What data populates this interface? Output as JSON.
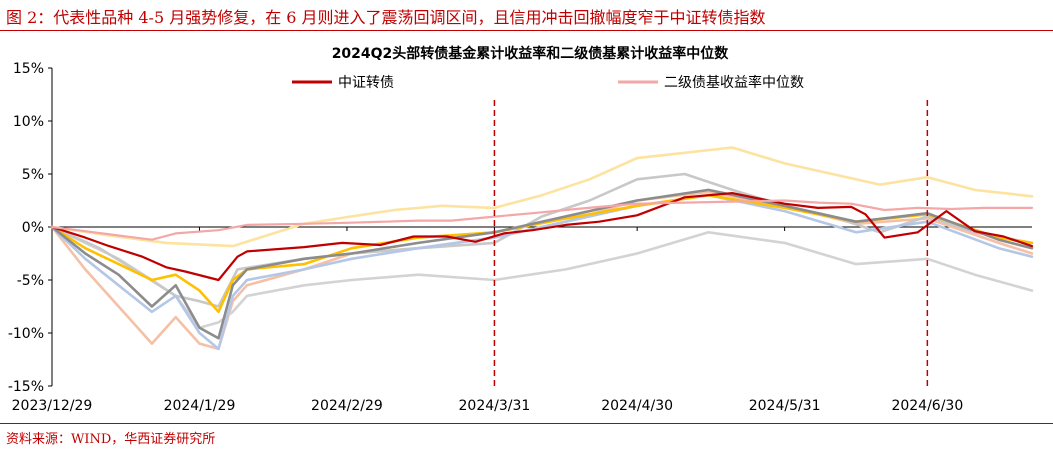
{
  "figure": {
    "title": "图 2：代表性品种 4-5 月强势修复，在 6 月则进入了震荡回调区间，且信用冲击回撤幅度窄于中证转债指数",
    "source": "资料来源：WIND，华西证券研究所"
  },
  "chart_data": {
    "type": "line",
    "title": "2024Q2头部转债基金累计收益率和二级债基累计收益率中位数",
    "xlabel": "",
    "ylabel": "",
    "x_ticks": [
      "2023/12/29",
      "2024/1/29",
      "2024/2/29",
      "2024/3/31",
      "2024/4/30",
      "2024/5/31",
      "2024/6/30"
    ],
    "y_ticks": [
      "15%",
      "10%",
      "5%",
      "0%",
      "-5%",
      "-10%",
      "-15%"
    ],
    "ylim": [
      -15,
      15
    ],
    "x_range": [
      "2023/12/29",
      "2024/7/22"
    ],
    "grid": false,
    "legend_position": "top",
    "vertical_markers": [
      "2024/3/31",
      "2024/6/30"
    ],
    "series": [
      {
        "name": "中证转债",
        "color": "#c00000",
        "x": [
          "2023/12/29",
          "2024/1/5",
          "2024/1/10",
          "2024/1/17",
          "2024/1/22",
          "2024/1/26",
          "2024/2/2",
          "2024/2/6",
          "2024/2/8",
          "2024/2/20",
          "2024/2/28",
          "2024/3/7",
          "2024/3/14",
          "2024/3/21",
          "2024/3/27",
          "2024/4/2",
          "2024/4/8",
          "2024/4/15",
          "2024/4/22",
          "2024/4/30",
          "2024/5/10",
          "2024/5/20",
          "2024/5/31",
          "2024/6/7",
          "2024/6/14",
          "2024/6/17",
          "2024/6/21",
          "2024/6/28",
          "2024/7/4",
          "2024/7/10",
          "2024/7/16",
          "2024/7/22"
        ],
        "values": [
          0,
          -1.0,
          -1.8,
          -2.8,
          -3.8,
          -4.2,
          -5.0,
          -2.8,
          -2.3,
          -1.9,
          -1.5,
          -1.7,
          -0.9,
          -0.9,
          -1.4,
          -0.6,
          -0.3,
          0.2,
          0.5,
          1.1,
          2.8,
          3.2,
          2.2,
          1.8,
          1.9,
          1.2,
          -1.0,
          -0.5,
          1.5,
          -0.4,
          -0.9,
          -1.8
        ]
      },
      {
        "name": "二级债基收益率中位数",
        "color": "#f4a7a7",
        "x": [
          "2023/12/29",
          "2024/1/5",
          "2024/1/12",
          "2024/1/19",
          "2024/1/24",
          "2024/2/2",
          "2024/2/8",
          "2024/2/20",
          "2024/2/29",
          "2024/3/8",
          "2024/3/15",
          "2024/3/22",
          "2024/3/29",
          "2024/4/8",
          "2024/4/15",
          "2024/4/22",
          "2024/4/30",
          "2024/5/10",
          "2024/5/20",
          "2024/5/31",
          "2024/6/7",
          "2024/6/14",
          "2024/6/21",
          "2024/6/28",
          "2024/7/5",
          "2024/7/12",
          "2024/7/22"
        ],
        "values": [
          0,
          -0.4,
          -0.8,
          -1.2,
          -0.6,
          -0.3,
          0.2,
          0.3,
          0.4,
          0.5,
          0.6,
          0.6,
          0.9,
          1.3,
          1.6,
          1.9,
          2.2,
          2.3,
          2.4,
          2.5,
          2.3,
          2.2,
          1.6,
          1.8,
          1.7,
          1.8,
          1.8
        ]
      },
      {
        "name": "",
        "color": "#fde3a0",
        "x": [
          "2023/12/29",
          "2024/1/10",
          "2024/1/22",
          "2024/2/5",
          "2024/2/20",
          "2024/3/1",
          "2024/3/10",
          "2024/3/20",
          "2024/3/31",
          "2024/4/10",
          "2024/4/20",
          "2024/4/30",
          "2024/5/10",
          "2024/5/20",
          "2024/5/31",
          "2024/6/10",
          "2024/6/20",
          "2024/6/30",
          "2024/7/10",
          "2024/7/22"
        ],
        "values": [
          0,
          -0.8,
          -1.5,
          -1.8,
          0.3,
          1.0,
          1.6,
          2.0,
          1.8,
          3.0,
          4.5,
          6.5,
          7.0,
          7.5,
          6.0,
          5.0,
          4.0,
          4.7,
          3.5,
          2.9
        ]
      },
      {
        "name": "",
        "color": "#f5c0a6",
        "x": [
          "2023/12/29",
          "2024/1/5",
          "2024/1/12",
          "2024/1/19",
          "2024/1/24",
          "2024/1/29",
          "2024/2/2",
          "2024/2/5",
          "2024/2/8",
          "2024/2/20",
          "2024/3/1",
          "2024/3/15",
          "2024/3/31",
          "2024/4/15",
          "2024/4/30",
          "2024/5/15",
          "2024/5/31",
          "2024/6/15",
          "2024/6/30",
          "2024/7/15",
          "2024/7/22"
        ],
        "values": [
          0,
          -4.0,
          -7.5,
          -11.0,
          -8.5,
          -11.0,
          -11.5,
          -7.0,
          -5.5,
          -4.0,
          -2.5,
          -2.0,
          -1.0,
          0.5,
          2.5,
          3.3,
          2.0,
          0.3,
          0.8,
          -1.5,
          -2.5
        ]
      },
      {
        "name": "",
        "color": "#d3d3d3",
        "x": [
          "2023/12/29",
          "2024/1/5",
          "2024/1/12",
          "2024/1/19",
          "2024/1/24",
          "2024/1/29",
          "2024/2/2",
          "2024/2/5",
          "2024/2/8",
          "2024/2/20",
          "2024/3/1",
          "2024/3/15",
          "2024/3/31",
          "2024/4/15",
          "2024/4/30",
          "2024/5/15",
          "2024/5/31",
          "2024/6/15",
          "2024/6/30",
          "2024/7/10",
          "2024/7/22"
        ],
        "values": [
          0,
          -1.5,
          -3.0,
          -5.0,
          -6.5,
          -9.5,
          -9.0,
          -8.0,
          -6.5,
          -5.5,
          -5.0,
          -4.5,
          -5.0,
          -4.0,
          -2.5,
          -0.5,
          -1.5,
          -3.5,
          -3.0,
          -4.5,
          -6.0
        ]
      },
      {
        "name": "",
        "color": "#c8c8c8",
        "x": [
          "2023/12/29",
          "2024/1/8",
          "2024/1/17",
          "2024/1/24",
          "2024/1/29",
          "2024/2/2",
          "2024/2/6",
          "2024/2/20",
          "2024/3/1",
          "2024/3/15",
          "2024/3/31",
          "2024/4/10",
          "2024/4/20",
          "2024/4/30",
          "2024/5/10",
          "2024/5/20",
          "2024/5/31",
          "2024/6/10",
          "2024/6/20",
          "2024/6/30",
          "2024/7/10",
          "2024/7/22"
        ],
        "values": [
          0,
          -2.0,
          -4.5,
          -6.5,
          -7.0,
          -7.5,
          -4.0,
          -3.0,
          -2.5,
          -2.0,
          -1.5,
          1.0,
          2.5,
          4.5,
          5.0,
          3.5,
          2.0,
          1.0,
          -0.5,
          1.0,
          -0.5,
          -1.5
        ]
      },
      {
        "name": "",
        "color": "#b4c7e7",
        "x": [
          "2023/12/29",
          "2024/1/5",
          "2024/1/12",
          "2024/1/19",
          "2024/1/24",
          "2024/1/29",
          "2024/2/2",
          "2024/2/5",
          "2024/2/8",
          "2024/2/20",
          "2024/3/1",
          "2024/3/15",
          "2024/3/31",
          "2024/4/15",
          "2024/4/30",
          "2024/5/15",
          "2024/5/31",
          "2024/6/15",
          "2024/6/30",
          "2024/7/15",
          "2024/7/22"
        ],
        "values": [
          0,
          -3.0,
          -5.5,
          -8.0,
          -6.5,
          -10.0,
          -11.5,
          -6.5,
          -5.0,
          -4.0,
          -3.0,
          -2.0,
          -1.0,
          0.5,
          2.0,
          3.0,
          1.5,
          -0.5,
          0.5,
          -2.0,
          -2.8
        ]
      },
      {
        "name": "",
        "color": "#ffc000",
        "x": [
          "2023/12/29",
          "2024/1/5",
          "2024/1/12",
          "2024/1/19",
          "2024/1/24",
          "2024/1/29",
          "2024/2/2",
          "2024/2/5",
          "2024/2/8",
          "2024/2/20",
          "2024/3/1",
          "2024/3/15",
          "2024/3/31",
          "2024/4/15",
          "2024/4/30",
          "2024/5/15",
          "2024/5/31",
          "2024/6/15",
          "2024/6/30",
          "2024/7/15",
          "2024/7/22"
        ],
        "values": [
          0,
          -2.0,
          -3.5,
          -5.0,
          -4.5,
          -6.0,
          -8.0,
          -5.0,
          -4.0,
          -3.5,
          -2.0,
          -1.0,
          -0.5,
          0.8,
          2.0,
          3.0,
          1.8,
          0.5,
          1.2,
          -1.0,
          -1.5
        ]
      },
      {
        "name": "",
        "color": "#8c8c8c",
        "x": [
          "2023/12/29",
          "2024/1/5",
          "2024/1/12",
          "2024/1/19",
          "2024/1/24",
          "2024/1/29",
          "2024/2/2",
          "2024/2/5",
          "2024/2/8",
          "2024/2/20",
          "2024/3/1",
          "2024/3/15",
          "2024/3/31",
          "2024/4/15",
          "2024/4/30",
          "2024/5/15",
          "2024/5/31",
          "2024/6/15",
          "2024/6/30",
          "2024/7/15",
          "2024/7/22"
        ],
        "values": [
          0,
          -2.5,
          -4.5,
          -7.5,
          -5.5,
          -9.5,
          -10.5,
          -5.5,
          -4.0,
          -3.0,
          -2.5,
          -1.5,
          -0.5,
          1.0,
          2.5,
          3.5,
          2.0,
          0.5,
          1.3,
          -1.2,
          -2.0
        ]
      }
    ]
  }
}
